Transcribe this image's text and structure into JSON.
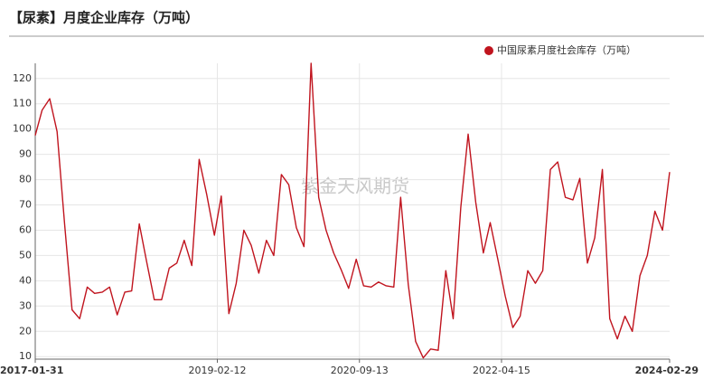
{
  "chart_data": {
    "type": "line",
    "title": "【尿素】月度企业库存（万吨）",
    "watermark": "紫金天风期货",
    "x": [
      "2017-01-31",
      "2017-02-28",
      "2017-03-31",
      "2017-04-30",
      "2017-05-31",
      "2017-06-30",
      "2017-07-31",
      "2017-08-31",
      "2017-09-30",
      "2017-10-31",
      "2017-11-30",
      "2017-12-31",
      "2018-01-31",
      "2018-02-28",
      "2018-03-31",
      "2018-04-30",
      "2018-05-31",
      "2018-06-30",
      "2018-07-31",
      "2018-08-31",
      "2018-09-30",
      "2018-10-31",
      "2018-11-30",
      "2018-12-31",
      "2019-01-31",
      "2019-02-28",
      "2019-03-31",
      "2019-04-30",
      "2019-05-31",
      "2019-06-30",
      "2019-07-31",
      "2019-08-31",
      "2019-09-30",
      "2019-10-31",
      "2019-11-30",
      "2019-12-31",
      "2020-01-31",
      "2020-02-29",
      "2020-03-31",
      "2020-04-30",
      "2020-05-31",
      "2020-06-30",
      "2020-07-31",
      "2020-08-31",
      "2020-09-30",
      "2020-10-31",
      "2020-11-30",
      "2020-12-31",
      "2021-01-31",
      "2021-02-28",
      "2021-03-31",
      "2021-04-30",
      "2021-05-31",
      "2021-06-30",
      "2021-07-31",
      "2021-08-31",
      "2021-09-30",
      "2021-10-31",
      "2021-11-30",
      "2021-12-31",
      "2022-01-31",
      "2022-02-28",
      "2022-03-31",
      "2022-04-30",
      "2022-05-31",
      "2022-06-30",
      "2022-07-31",
      "2022-08-31",
      "2022-09-30",
      "2022-10-31",
      "2022-11-30",
      "2022-12-31",
      "2023-01-31",
      "2023-02-28",
      "2023-03-31",
      "2023-04-30",
      "2023-05-31",
      "2023-06-30",
      "2023-07-31",
      "2023-08-31",
      "2023-09-30",
      "2023-10-31",
      "2023-11-30",
      "2023-12-31",
      "2024-01-31",
      "2024-02-29"
    ],
    "series": [
      {
        "name": "中国尿素月度社会库存（万吨）",
        "color": "#c0141e",
        "values": [
          97.5,
          107.5,
          112,
          99,
          62,
          28.5,
          25,
          37.5,
          35,
          35.5,
          37.5,
          26.5,
          35.5,
          36,
          62.5,
          47.5,
          32.5,
          32.5,
          45,
          47,
          56,
          46,
          88,
          74,
          58,
          73.5,
          27,
          39,
          60,
          54,
          43,
          56,
          50,
          82,
          78,
          61,
          53.5,
          126,
          73,
          60,
          51,
          44.5,
          37,
          48.5,
          38,
          37.5,
          39.5,
          38,
          37.5,
          73,
          38.5,
          16,
          9.5,
          13,
          12.5,
          44,
          25,
          69,
          98,
          71,
          51,
          63,
          48.5,
          34,
          21.5,
          26,
          44,
          39,
          44,
          84,
          87,
          73,
          72,
          80.5,
          47,
          57,
          84,
          25,
          17,
          26,
          20,
          42,
          50,
          67.5,
          60,
          83
        ]
      }
    ],
    "xlim": [
      "2017-01-31",
      "2024-02-29"
    ],
    "xticks": [
      "2017-01-31",
      "2019-02-12",
      "2020-09-13",
      "2022-04-15",
      "2024-02-29"
    ],
    "ylim": [
      9,
      126
    ],
    "yticks": [
      10,
      20,
      30,
      40,
      50,
      60,
      70,
      80,
      90,
      100,
      110,
      120
    ],
    "grid": true,
    "legend": "top-right"
  }
}
